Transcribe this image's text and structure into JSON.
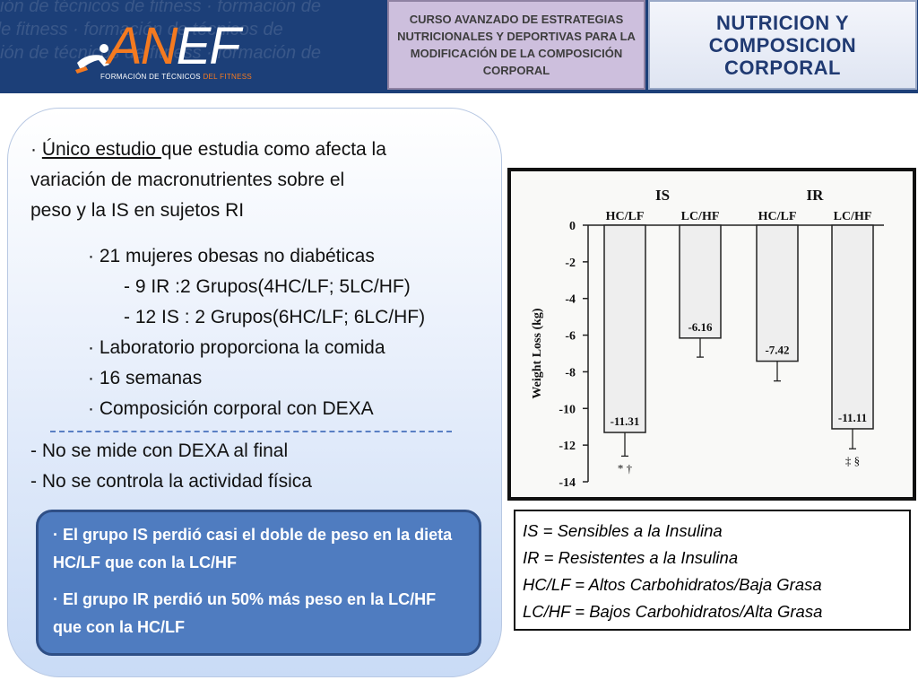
{
  "header": {
    "watermark_lines": [
      "ción de técnicos de fitness · formación de",
      "de fitness · formación de técnicos de",
      "ción de técnicos de fitness · formación de"
    ],
    "logo": {
      "an": "AN",
      "ef": "EF",
      "sub_prefix": "FORMACIÓN DE TÉCNICOS ",
      "sub_accent": "DEL FITNESS"
    },
    "course_title": "CURSO AVANZADO DE ESTRATEGIAS NUTRICIONALES Y DEPORTIVAS PARA LA MODIFICACIÓN DE LA COMPOSICIÓN CORPORAL",
    "topic_title": "NUTRICION Y COMPOSICION CORPORAL"
  },
  "left_panel": {
    "intro_bullet": "· ",
    "intro_underlined": "Único estudio ",
    "intro_rest_1": "que estudia como afecta la",
    "intro_line_2": "variación de macronutrientes sobre el",
    "intro_line_3": "peso y la IS en sujetos RI",
    "bullets": [
      {
        "text": "· 21 mujeres obesas no diabéticas",
        "indent": 1
      },
      {
        "text": "- 9 IR :2 Grupos(4HC/LF; 5LC/HF)",
        "indent": 2
      },
      {
        "text": "- 12 IS : 2 Grupos(6HC/LF; 6LC/HF)",
        "indent": 2
      },
      {
        "text": "· Laboratorio proporciona la comida",
        "indent": 1
      },
      {
        "text": "· 16 semanas",
        "indent": 1
      },
      {
        "text": "· Composición corporal con DEXA",
        "indent": 1
      }
    ],
    "limitations": [
      "- No se mide con DEXA al final",
      "- No se controla la actividad física"
    ]
  },
  "highlight_box": {
    "p1": "· El grupo IS perdió casi el doble de peso en la dieta HC/LF que con la LC/HF",
    "p2": "· El grupo IR perdió un 50% más peso en la LC/HF que con la HC/LF"
  },
  "chart_data": {
    "type": "bar",
    "groups": [
      "IS",
      "IR"
    ],
    "categories": [
      "HC/LF",
      "LC/HF",
      "HC/LF",
      "LC/HF"
    ],
    "category_group": [
      "IS",
      "IS",
      "IR",
      "IR"
    ],
    "values": [
      -11.31,
      -6.16,
      -7.42,
      -11.11
    ],
    "value_labels": [
      "-11.31",
      "-6.16",
      "-7.42",
      "-11.11"
    ],
    "error_low": [
      -12.6,
      -7.2,
      -8.5,
      -12.2
    ],
    "significance": [
      "* †",
      "",
      "",
      "‡ §"
    ],
    "ylabel": "Weight Loss (kg)",
    "ylim": [
      -14,
      0
    ],
    "yticks": [
      0,
      -2,
      -4,
      -6,
      -8,
      -10,
      -12,
      -14
    ],
    "grid": false,
    "legend": "none"
  },
  "legend": {
    "lines": [
      "IS = Sensibles a la Insulina",
      "IR = Resistentes a la Insulina",
      "HC/LF = Altos Carbohidratos/Baja Grasa",
      "LC/HF = Bajos Carbohidratos/Alta Grasa"
    ]
  },
  "colors": {
    "header_bg": "#1c3f78",
    "logo_orange": "#f47a20",
    "course_box": "#cdbfdd",
    "topic_text": "#203a72",
    "highlight_box": "#4f7cc0",
    "dash_line": "#5a7fc4"
  }
}
